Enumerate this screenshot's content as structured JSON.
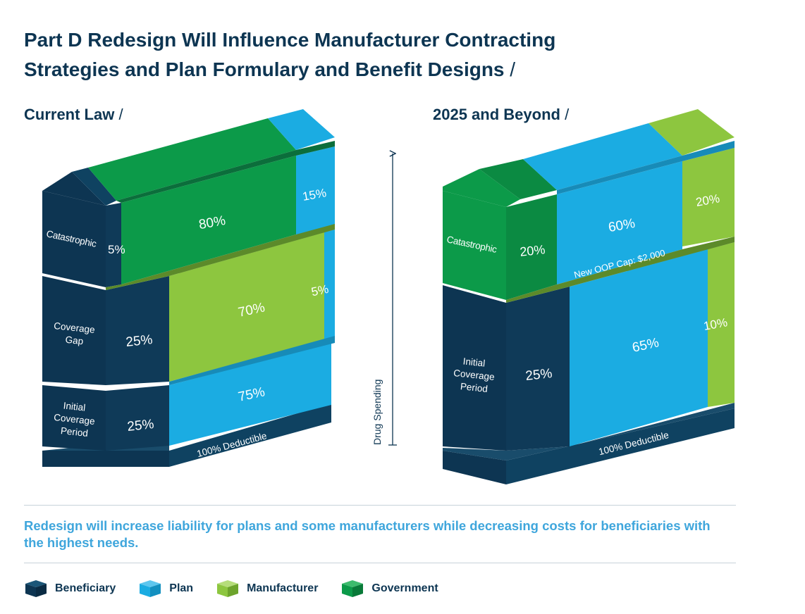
{
  "title": {
    "line1": "Part D Redesign Will Influence Manufacturer Contracting",
    "line2": "Strategies and Plan Formulary and Benefit Designs",
    "slash": "/"
  },
  "current_law": {
    "heading": "Current Law",
    "slash": "/",
    "phases": {
      "catastrophic": "Catastrophic",
      "coverage_gap_1": "Coverage",
      "coverage_gap_2": "Gap",
      "initial_1": "Initial",
      "initial_2": "Coverage",
      "initial_3": "Period"
    },
    "values": {
      "cat_beneficiary": "5%",
      "cat_government": "80%",
      "cat_plan": "15%",
      "gap_beneficiary": "25%",
      "gap_manufacturer": "70%",
      "gap_plan": "5%",
      "icp_beneficiary": "25%",
      "icp_plan": "75%",
      "deductible": "100% Deductible"
    }
  },
  "future": {
    "heading": "2025 and Beyond",
    "slash": "/",
    "phases": {
      "catastrophic": "Catastrophic",
      "initial_1": "Initial",
      "initial_2": "Coverage",
      "initial_3": "Period"
    },
    "values": {
      "cat_government": "20%",
      "cat_plan": "60%",
      "cat_manufacturer": "20%",
      "oop_cap": "New OOP Cap: $2,000",
      "icp_beneficiary": "25%",
      "icp_plan": "65%",
      "icp_manufacturer": "10%",
      "deductible": "100% Deductible"
    }
  },
  "axis_label": "Drug Spending",
  "note": "Redesign will increase liability for plans and some manufacturers while decreasing costs for beneficiaries with the highest needs.",
  "legend": [
    {
      "label": "Beneficiary",
      "icon": "cube-icon",
      "color": "#0d3552"
    },
    {
      "label": "Plan",
      "icon": "cube-icon",
      "color": "#1bace2"
    },
    {
      "label": "Manufacturer",
      "icon": "cube-icon",
      "color": "#8dc63f"
    },
    {
      "label": "Government",
      "icon": "cube-icon",
      "color": "#0c9a49"
    }
  ],
  "colors": {
    "beneficiary": "#0d3552",
    "plan": "#1bace2",
    "manufacturer": "#8dc63f",
    "government": "#0c9a49"
  }
}
